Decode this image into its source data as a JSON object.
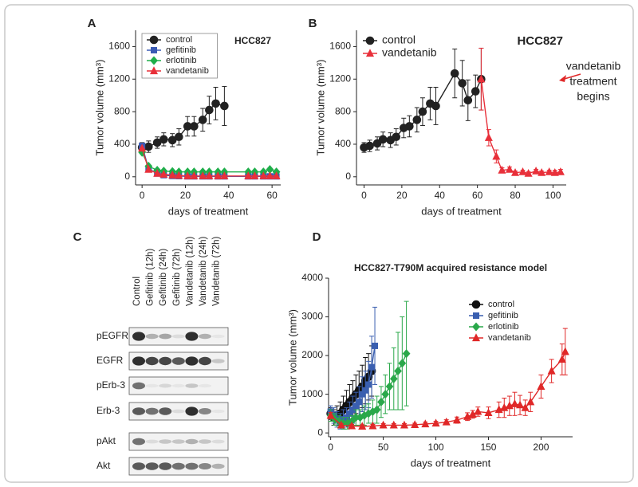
{
  "chart_data": [
    {
      "type": "line",
      "label": "A",
      "annotation": "HCC827",
      "xlabel": "days of treatment",
      "ylabel": "Tumor volume (mm³)",
      "xlim": [
        -3,
        64
      ],
      "ylim": [
        -100,
        1800
      ],
      "xticks": [
        0,
        20,
        40,
        60
      ],
      "yticks": [
        0,
        400,
        800,
        1200,
        1600
      ],
      "legend": "upper left",
      "series": [
        {
          "name": "control",
          "color": "#222222",
          "marker": "circle",
          "x": [
            0,
            3,
            7,
            10,
            14,
            17,
            21,
            24,
            28,
            31,
            34,
            38
          ],
          "values": [
            360,
            370,
            420,
            460,
            450,
            490,
            620,
            620,
            700,
            820,
            900,
            870
          ],
          "errors": [
            60,
            70,
            70,
            80,
            80,
            100,
            120,
            120,
            140,
            170,
            200,
            240
          ]
        },
        {
          "name": "gefitinib",
          "color": "#3b5bb5",
          "marker": "square",
          "x": [
            0,
            3,
            7,
            10,
            14,
            17,
            21,
            24,
            28,
            31,
            35,
            38,
            49,
            52,
            56,
            59,
            62
          ],
          "values": [
            380,
            100,
            40,
            20,
            10,
            8,
            5,
            5,
            5,
            5,
            5,
            5,
            5,
            5,
            5,
            5,
            5
          ]
        },
        {
          "name": "erlotinib",
          "color": "#1fae4a",
          "marker": "diamond",
          "x": [
            0,
            3,
            7,
            10,
            14,
            17,
            21,
            24,
            28,
            31,
            35,
            38,
            49,
            52,
            56,
            59,
            62
          ],
          "values": [
            300,
            130,
            80,
            70,
            65,
            60,
            60,
            60,
            60,
            60,
            60,
            60,
            60,
            60,
            60,
            90,
            60
          ]
        },
        {
          "name": "vandetanib",
          "color": "#e8303a",
          "marker": "triangle",
          "x": [
            0,
            3,
            7,
            10,
            14,
            17,
            21,
            24,
            28,
            31,
            35,
            38,
            49,
            52,
            56,
            59,
            62
          ],
          "values": [
            350,
            90,
            40,
            30,
            20,
            15,
            10,
            10,
            10,
            10,
            10,
            10,
            10,
            10,
            10,
            10,
            10
          ]
        }
      ]
    },
    {
      "type": "line",
      "label": "B",
      "annotation": "HCC827",
      "annotation_lines": [
        "vandetanib",
        "treatment",
        "begins"
      ],
      "xlabel": "days of treatment",
      "ylabel": "Tumor volume (mm³)",
      "xlim": [
        -4,
        107
      ],
      "ylim": [
        -100,
        1800
      ],
      "xticks": [
        0,
        20,
        40,
        60,
        80,
        100
      ],
      "yticks": [
        0,
        400,
        800,
        1200,
        1600
      ],
      "legend": "upper left",
      "series": [
        {
          "name": "control",
          "color": "#222222",
          "marker": "circle",
          "x": [
            0,
            3,
            7,
            10,
            14,
            17,
            21,
            24,
            28,
            31,
            35,
            38,
            48,
            52,
            55,
            59,
            62
          ],
          "values": [
            360,
            380,
            410,
            460,
            450,
            490,
            600,
            620,
            700,
            800,
            900,
            870,
            1270,
            1150,
            940,
            1050,
            1200
          ],
          "errors": [
            60,
            70,
            80,
            90,
            90,
            100,
            120,
            130,
            150,
            170,
            200,
            230,
            300,
            280,
            250,
            200,
            380
          ]
        },
        {
          "name": "vandetanib",
          "color": "#e8303a",
          "marker": "triangle",
          "x": [
            62,
            66,
            70,
            73,
            77,
            80,
            84,
            87,
            91,
            94,
            98,
            101,
            104
          ],
          "values": [
            1200,
            480,
            250,
            80,
            90,
            50,
            60,
            40,
            70,
            50,
            60,
            50,
            60
          ],
          "errors": [
            380,
            100,
            80,
            30,
            30,
            20,
            20,
            20,
            20,
            20,
            20,
            30,
            30
          ]
        }
      ]
    },
    {
      "type": "line",
      "label": "D",
      "title": "HCC827-T790M acquired resistance model",
      "xlabel": "days of treatment",
      "ylabel": "Tumor volume (mm³)",
      "xlim": [
        -2,
        230
      ],
      "ylim": [
        -100,
        4000
      ],
      "xticks": [
        0,
        50,
        100,
        150,
        200
      ],
      "yticks": [
        0,
        1000,
        2000,
        3000,
        4000
      ],
      "legend": "right",
      "series": [
        {
          "name": "control",
          "color": "#111111",
          "marker": "circle",
          "x": [
            0,
            3,
            6,
            9,
            12,
            15,
            18,
            21,
            24,
            27,
            30,
            33,
            36,
            39
          ],
          "values": [
            500,
            400,
            450,
            500,
            600,
            700,
            800,
            900,
            1000,
            1100,
            1200,
            1350,
            1450,
            1600
          ],
          "errors": [
            150,
            200,
            250,
            300,
            350,
            400,
            450,
            450,
            500,
            500,
            550,
            600,
            600,
            650
          ]
        },
        {
          "name": "gefitinib",
          "color": "#3a5fb0",
          "marker": "square",
          "x": [
            0,
            3,
            6,
            9,
            12,
            15,
            18,
            21,
            24,
            27,
            30,
            33,
            36,
            39,
            42
          ],
          "values": [
            550,
            450,
            350,
            300,
            350,
            400,
            500,
            600,
            700,
            800,
            1000,
            1100,
            1250,
            1700,
            2250
          ],
          "errors": [
            150,
            200,
            200,
            200,
            250,
            250,
            300,
            350,
            350,
            400,
            450,
            500,
            600,
            800,
            1000
          ]
        },
        {
          "name": "erlotinib",
          "color": "#2aa84a",
          "marker": "diamond",
          "x": [
            0,
            4,
            8,
            12,
            16,
            20,
            24,
            28,
            32,
            36,
            40,
            44,
            48,
            52,
            56,
            60,
            64,
            68,
            72
          ],
          "values": [
            450,
            350,
            300,
            250,
            250,
            300,
            400,
            400,
            450,
            500,
            550,
            600,
            800,
            1000,
            1200,
            1400,
            1600,
            1800,
            2050
          ],
          "errors": [
            150,
            150,
            150,
            150,
            150,
            150,
            200,
            200,
            250,
            250,
            300,
            350,
            400,
            500,
            600,
            800,
            1000,
            1200,
            1350
          ]
        },
        {
          "name": "vandetanib",
          "color": "#e02828",
          "marker": "triangle",
          "x": [
            0,
            10,
            20,
            30,
            40,
            50,
            60,
            70,
            80,
            90,
            100,
            110,
            120,
            130,
            135,
            140,
            150,
            160,
            165,
            170,
            175,
            180,
            185,
            190,
            200,
            210,
            220,
            223
          ],
          "values": [
            450,
            200,
            180,
            170,
            180,
            200,
            200,
            200,
            210,
            230,
            250,
            280,
            330,
            420,
            480,
            550,
            520,
            600,
            650,
            700,
            750,
            720,
            650,
            800,
            1200,
            1600,
            1900,
            2100
          ],
          "errors": [
            80,
            40,
            40,
            40,
            40,
            40,
            40,
            40,
            40,
            50,
            50,
            60,
            80,
            100,
            100,
            120,
            150,
            200,
            250,
            250,
            300,
            250,
            200,
            250,
            300,
            300,
            400,
            600
          ]
        }
      ]
    }
  ],
  "blot": {
    "label": "C",
    "columns": [
      "Control",
      "Gefitinib (12h)",
      "Gefitinib (24h)",
      "Gefitinib (72h)",
      "Vandetanib (12h)",
      "Vandetanib (24h)",
      "Vandetanib (72h)"
    ],
    "rows": [
      "pEGFR",
      "EGFR",
      "pErb-3",
      "Erb-3",
      "pAkt",
      "Akt"
    ]
  }
}
